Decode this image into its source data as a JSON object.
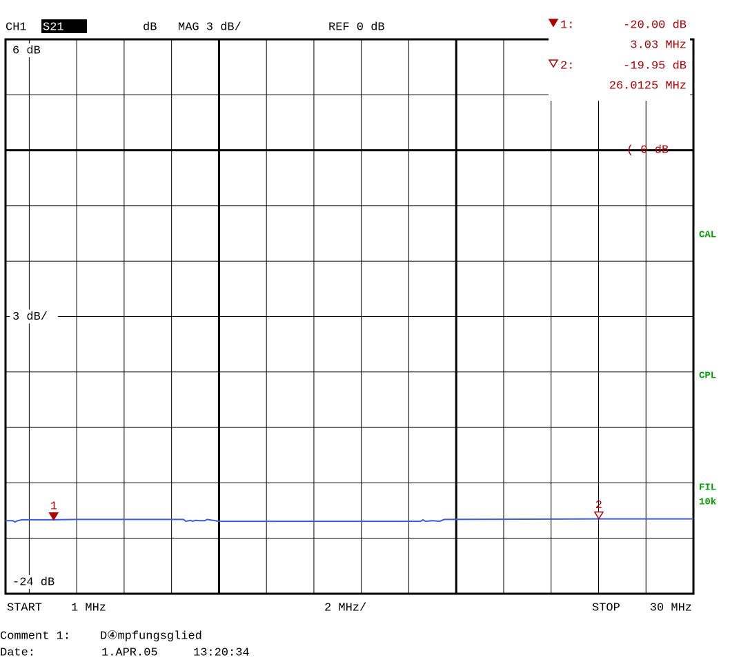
{
  "chart_data": {
    "type": "line",
    "header": {
      "channel": "CH1",
      "parameter": "S21",
      "format": "dB",
      "scale": "MAG 3 dB/",
      "reference": "REF 0 dB"
    },
    "ref_indicator": "( 0 dB",
    "side_labels": [
      "CAL",
      "CPL",
      "FIL",
      "10k"
    ],
    "x_footer": {
      "start_word": "START",
      "start": "1 MHz",
      "span": "2 MHz/",
      "stop_word": "STOP",
      "stop": "30 MHz"
    },
    "comment": {
      "label": "Comment 1:",
      "text": "D④mpfungsglied"
    },
    "date": {
      "label": "Date:",
      "day": "1.APR.05",
      "time": "13:20:34"
    },
    "xlim": [
      1,
      30
    ],
    "ylim": [
      -24,
      6
    ],
    "yticks": [
      {
        "value": 6,
        "label": "6 dB"
      },
      {
        "value": -9,
        "label": "3 dB/"
      },
      {
        "value": -24,
        "label": "-24 dB"
      }
    ],
    "xgrid": [
      2,
      4,
      6,
      8,
      10,
      12,
      14,
      16,
      18,
      20,
      22,
      24,
      26,
      28
    ],
    "xgrid_bold": [
      10,
      20
    ],
    "ygrid": [
      3,
      0,
      -3,
      -6,
      -9,
      -12,
      -15,
      -18,
      -21
    ],
    "ref_level": 0,
    "series": [
      {
        "name": "S21",
        "color": "#3a5ae0",
        "x": [
          1.0,
          1.3,
          1.4,
          1.5,
          1.7,
          3.03,
          4.0,
          8.5,
          8.6,
          8.8,
          8.9,
          9.0,
          9.2,
          9.4,
          9.5,
          10.0,
          18.5,
          18.6,
          18.7,
          19.0,
          19.3,
          19.5,
          26.01,
          30.0
        ],
        "values": [
          -20.05,
          -20.05,
          -20.12,
          -20.05,
          -20.0,
          -20.0,
          -19.98,
          -19.98,
          -20.08,
          -20.03,
          -20.08,
          -20.03,
          -20.05,
          -20.05,
          -19.98,
          -20.08,
          -20.08,
          -20.0,
          -20.08,
          -20.05,
          -20.08,
          -19.98,
          -19.95,
          -19.95
        ]
      }
    ],
    "markers": [
      {
        "number": "1",
        "label": "1:",
        "filled": true,
        "value": -20.0,
        "value_label": "-20.00 dB",
        "x": 3.03,
        "x_label": "3.03 MHz",
        "color": "#b00000"
      },
      {
        "number": "2",
        "label": "2:",
        "filled": false,
        "value": -19.95,
        "value_label": "-19.95 dB",
        "x": 26.0125,
        "x_label": "26.0125 MHz",
        "color": "#b00000"
      }
    ]
  }
}
